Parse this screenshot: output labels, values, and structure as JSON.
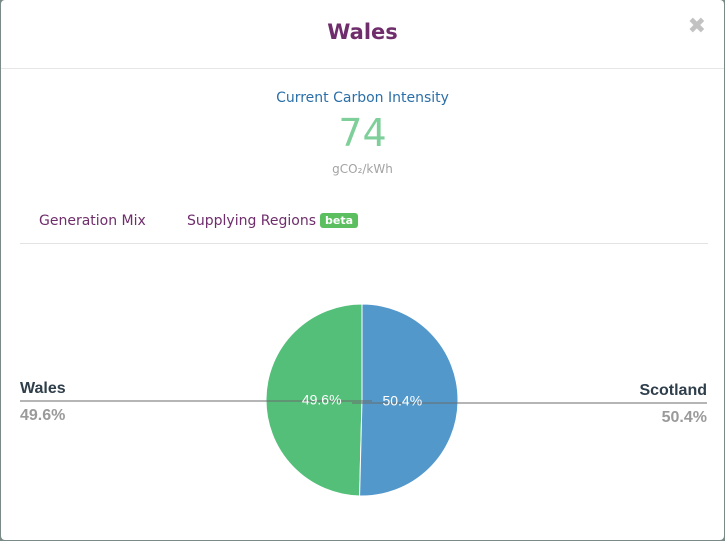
{
  "modal": {
    "title": "Wales",
    "close_symbol": "✖"
  },
  "carbon_intensity": {
    "label": "Current Carbon Intensity",
    "value": "74",
    "unit": "gCO₂/kWh"
  },
  "tabs": [
    {
      "label": "Generation Mix"
    },
    {
      "label": "Supplying Regions",
      "badge": "beta"
    }
  ],
  "chart_data": {
    "type": "pie",
    "series": [
      {
        "name": "Wales",
        "value": 49.6,
        "label": "49.6%",
        "color": "#53bf79"
      },
      {
        "name": "Scotland",
        "value": 50.4,
        "label": "50.4%",
        "color": "#5398cb"
      }
    ],
    "legend": "sides"
  }
}
